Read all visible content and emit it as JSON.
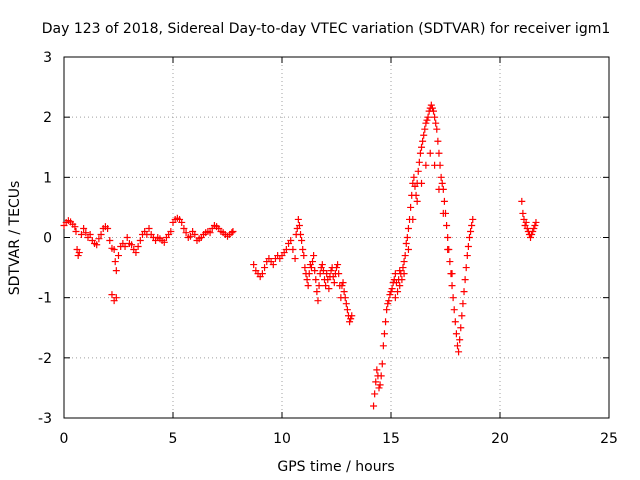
{
  "chart_data": {
    "type": "scatter",
    "title": "Day 123 of 2018, Sidereal Day-to-day VTEC variation (SDTVAR) for receiver igm1",
    "xlabel": "GPS time / hours",
    "ylabel": "SDTVAR / TECUs",
    "xlim": [
      0,
      25
    ],
    "ylim": [
      -3,
      3
    ],
    "x_ticks": [
      0,
      5,
      10,
      15,
      20,
      25
    ],
    "y_ticks": [
      -3,
      -2,
      -1,
      0,
      1,
      2,
      3
    ],
    "grid": true,
    "marker": "+",
    "color": "#ff0000",
    "series": [
      {
        "name": "SDTVAR",
        "points": [
          [
            0.0,
            0.2
          ],
          [
            0.1,
            0.25
          ],
          [
            0.2,
            0.28
          ],
          [
            0.3,
            0.26
          ],
          [
            0.4,
            0.22
          ],
          [
            0.5,
            0.18
          ],
          [
            0.55,
            0.1
          ],
          [
            0.6,
            -0.2
          ],
          [
            0.65,
            -0.3
          ],
          [
            0.7,
            -0.25
          ],
          [
            0.8,
            0.05
          ],
          [
            0.9,
            0.15
          ],
          [
            1.0,
            0.08
          ],
          [
            1.1,
            0.0
          ],
          [
            1.2,
            0.05
          ],
          [
            1.3,
            -0.05
          ],
          [
            1.4,
            -0.1
          ],
          [
            1.5,
            -0.12
          ],
          [
            1.6,
            -0.02
          ],
          [
            1.7,
            0.05
          ],
          [
            1.8,
            0.15
          ],
          [
            1.9,
            0.18
          ],
          [
            2.0,
            0.15
          ],
          [
            2.1,
            -0.05
          ],
          [
            2.2,
            -0.18
          ],
          [
            2.3,
            -0.2
          ],
          [
            2.35,
            -0.4
          ],
          [
            2.4,
            -0.55
          ],
          [
            2.2,
            -0.95
          ],
          [
            2.3,
            -1.05
          ],
          [
            2.4,
            -1.0
          ],
          [
            2.5,
            -0.3
          ],
          [
            2.6,
            -0.15
          ],
          [
            2.7,
            -0.1
          ],
          [
            2.8,
            -0.15
          ],
          [
            2.9,
            0.0
          ],
          [
            3.0,
            -0.1
          ],
          [
            3.1,
            -0.12
          ],
          [
            3.2,
            -0.2
          ],
          [
            3.3,
            -0.25
          ],
          [
            3.4,
            -0.15
          ],
          [
            3.5,
            -0.05
          ],
          [
            3.6,
            0.05
          ],
          [
            3.7,
            0.1
          ],
          [
            3.8,
            0.05
          ],
          [
            3.9,
            0.15
          ],
          [
            4.0,
            0.05
          ],
          [
            4.1,
            0.0
          ],
          [
            4.2,
            -0.05
          ],
          [
            4.3,
            0.0
          ],
          [
            4.4,
            -0.02
          ],
          [
            4.5,
            -0.05
          ],
          [
            4.6,
            -0.08
          ],
          [
            4.7,
            0.0
          ],
          [
            4.8,
            0.05
          ],
          [
            4.9,
            0.1
          ],
          [
            5.0,
            0.25
          ],
          [
            5.1,
            0.3
          ],
          [
            5.2,
            0.32
          ],
          [
            5.3,
            0.3
          ],
          [
            5.4,
            0.25
          ],
          [
            5.5,
            0.15
          ],
          [
            5.6,
            0.08
          ],
          [
            5.7,
            0.0
          ],
          [
            5.8,
            0.02
          ],
          [
            5.9,
            0.1
          ],
          [
            6.0,
            0.05
          ],
          [
            6.1,
            -0.05
          ],
          [
            6.2,
            -0.02
          ],
          [
            6.3,
            0.0
          ],
          [
            6.4,
            0.05
          ],
          [
            6.5,
            0.08
          ],
          [
            6.6,
            0.1
          ],
          [
            6.7,
            0.08
          ],
          [
            6.8,
            0.15
          ],
          [
            6.9,
            0.2
          ],
          [
            7.0,
            0.18
          ],
          [
            7.1,
            0.15
          ],
          [
            7.2,
            0.1
          ],
          [
            7.3,
            0.08
          ],
          [
            7.4,
            0.05
          ],
          [
            7.5,
            0.02
          ],
          [
            7.6,
            0.05
          ],
          [
            7.7,
            0.08
          ],
          [
            7.75,
            0.1
          ],
          [
            8.7,
            -0.45
          ],
          [
            8.8,
            -0.55
          ],
          [
            8.9,
            -0.6
          ],
          [
            9.0,
            -0.65
          ],
          [
            9.1,
            -0.6
          ],
          [
            9.2,
            -0.5
          ],
          [
            9.3,
            -0.4
          ],
          [
            9.4,
            -0.35
          ],
          [
            9.5,
            -0.4
          ],
          [
            9.6,
            -0.45
          ],
          [
            9.7,
            -0.35
          ],
          [
            9.8,
            -0.3
          ],
          [
            9.9,
            -0.35
          ],
          [
            10.0,
            -0.3
          ],
          [
            10.1,
            -0.25
          ],
          [
            10.2,
            -0.2
          ],
          [
            10.3,
            -0.1
          ],
          [
            10.4,
            -0.05
          ],
          [
            10.5,
            -0.2
          ],
          [
            10.6,
            -0.35
          ],
          [
            10.65,
            0.05
          ],
          [
            10.7,
            0.15
          ],
          [
            10.75,
            0.3
          ],
          [
            10.8,
            0.2
          ],
          [
            10.85,
            0.05
          ],
          [
            10.9,
            -0.05
          ],
          [
            10.95,
            -0.2
          ],
          [
            11.0,
            -0.3
          ],
          [
            11.05,
            -0.5
          ],
          [
            11.1,
            -0.6
          ],
          [
            11.15,
            -0.7
          ],
          [
            11.2,
            -0.8
          ],
          [
            11.25,
            -0.6
          ],
          [
            11.3,
            -0.45
          ],
          [
            11.35,
            -0.5
          ],
          [
            11.4,
            -0.4
          ],
          [
            11.45,
            -0.3
          ],
          [
            11.5,
            -0.55
          ],
          [
            11.55,
            -0.7
          ],
          [
            11.6,
            -0.9
          ],
          [
            11.65,
            -1.05
          ],
          [
            11.7,
            -0.8
          ],
          [
            11.75,
            -0.6
          ],
          [
            11.8,
            -0.5
          ],
          [
            11.85,
            -0.45
          ],
          [
            11.9,
            -0.55
          ],
          [
            11.95,
            -0.7
          ],
          [
            12.0,
            -0.8
          ],
          [
            12.05,
            -0.6
          ],
          [
            12.1,
            -0.7
          ],
          [
            12.15,
            -0.85
          ],
          [
            12.2,
            -0.65
          ],
          [
            12.25,
            -0.55
          ],
          [
            12.3,
            -0.5
          ],
          [
            12.35,
            -0.65
          ],
          [
            12.4,
            -0.75
          ],
          [
            12.45,
            -0.6
          ],
          [
            12.5,
            -0.5
          ],
          [
            12.55,
            -0.45
          ],
          [
            12.6,
            -0.6
          ],
          [
            12.65,
            -0.8
          ],
          [
            12.7,
            -1.0
          ],
          [
            12.75,
            -0.8
          ],
          [
            12.8,
            -0.75
          ],
          [
            12.85,
            -0.9
          ],
          [
            12.9,
            -1.0
          ],
          [
            12.95,
            -1.1
          ],
          [
            13.0,
            -1.2
          ],
          [
            13.05,
            -1.3
          ],
          [
            13.1,
            -1.4
          ],
          [
            13.15,
            -1.35
          ],
          [
            13.2,
            -1.3
          ],
          [
            14.2,
            -2.8
          ],
          [
            14.25,
            -2.6
          ],
          [
            14.3,
            -2.4
          ],
          [
            14.35,
            -2.2
          ],
          [
            14.4,
            -2.3
          ],
          [
            14.45,
            -2.5
          ],
          [
            14.5,
            -2.45
          ],
          [
            14.55,
            -2.3
          ],
          [
            14.6,
            -2.1
          ],
          [
            14.65,
            -1.8
          ],
          [
            14.7,
            -1.6
          ],
          [
            14.75,
            -1.4
          ],
          [
            14.8,
            -1.2
          ],
          [
            14.85,
            -1.1
          ],
          [
            14.9,
            -1.05
          ],
          [
            14.95,
            -0.95
          ],
          [
            15.0,
            -0.9
          ],
          [
            15.05,
            -0.85
          ],
          [
            15.1,
            -0.75
          ],
          [
            15.15,
            -0.7
          ],
          [
            15.2,
            -0.6
          ],
          [
            15.25,
            -0.75
          ],
          [
            15.3,
            -0.9
          ],
          [
            15.35,
            -0.7
          ],
          [
            15.4,
            -0.55
          ],
          [
            15.45,
            -0.6
          ],
          [
            15.5,
            -0.7
          ],
          [
            15.55,
            -0.5
          ],
          [
            15.6,
            -0.4
          ],
          [
            15.65,
            -0.3
          ],
          [
            15.7,
            -0.1
          ],
          [
            15.75,
            0.0
          ],
          [
            15.8,
            0.15
          ],
          [
            15.85,
            0.3
          ],
          [
            15.9,
            0.5
          ],
          [
            15.95,
            0.7
          ],
          [
            16.0,
            0.9
          ],
          [
            16.05,
            1.0
          ],
          [
            16.1,
            0.85
          ],
          [
            16.15,
            0.7
          ],
          [
            16.2,
            0.9
          ],
          [
            16.25,
            1.1
          ],
          [
            16.3,
            1.25
          ],
          [
            16.35,
            1.4
          ],
          [
            16.4,
            1.5
          ],
          [
            16.45,
            1.6
          ],
          [
            16.5,
            1.7
          ],
          [
            16.55,
            1.8
          ],
          [
            16.6,
            1.9
          ],
          [
            16.65,
            1.95
          ],
          [
            16.7,
            2.0
          ],
          [
            16.75,
            2.1
          ],
          [
            16.8,
            2.15
          ],
          [
            16.85,
            2.2
          ],
          [
            16.9,
            2.15
          ],
          [
            16.95,
            2.1
          ],
          [
            17.0,
            2.0
          ],
          [
            17.05,
            1.9
          ],
          [
            17.1,
            1.8
          ],
          [
            17.15,
            1.6
          ],
          [
            17.2,
            1.4
          ],
          [
            17.25,
            1.2
          ],
          [
            17.3,
            1.0
          ],
          [
            17.35,
            0.9
          ],
          [
            17.4,
            0.8
          ],
          [
            17.45,
            0.6
          ],
          [
            17.5,
            0.4
          ],
          [
            17.55,
            0.2
          ],
          [
            17.6,
            0.0
          ],
          [
            17.65,
            -0.2
          ],
          [
            17.7,
            -0.4
          ],
          [
            17.75,
            -0.6
          ],
          [
            17.8,
            -0.8
          ],
          [
            17.85,
            -1.0
          ],
          [
            17.9,
            -1.2
          ],
          [
            17.95,
            -1.4
          ],
          [
            18.0,
            -1.6
          ],
          [
            18.05,
            -1.8
          ],
          [
            18.1,
            -1.9
          ],
          [
            18.15,
            -1.7
          ],
          [
            18.2,
            -1.5
          ],
          [
            18.25,
            -1.3
          ],
          [
            18.3,
            -1.1
          ],
          [
            18.35,
            -0.9
          ],
          [
            18.4,
            -0.7
          ],
          [
            18.45,
            -0.5
          ],
          [
            18.5,
            -0.3
          ],
          [
            18.55,
            -0.15
          ],
          [
            18.6,
            0.0
          ],
          [
            18.65,
            0.1
          ],
          [
            18.7,
            0.2
          ],
          [
            18.75,
            0.3
          ],
          [
            15.2,
            -1.0
          ],
          [
            15.4,
            -0.8
          ],
          [
            15.6,
            -0.6
          ],
          [
            15.8,
            -0.2
          ],
          [
            16.0,
            0.3
          ],
          [
            16.2,
            0.6
          ],
          [
            16.4,
            0.9
          ],
          [
            16.6,
            1.2
          ],
          [
            16.8,
            1.4
          ],
          [
            17.0,
            1.2
          ],
          [
            17.2,
            0.8
          ],
          [
            17.4,
            0.4
          ],
          [
            17.6,
            -0.2
          ],
          [
            17.8,
            -0.6
          ],
          [
            21.0,
            0.6
          ],
          [
            21.05,
            0.4
          ],
          [
            21.1,
            0.3
          ],
          [
            21.15,
            0.2
          ],
          [
            21.2,
            0.25
          ],
          [
            21.25,
            0.15
          ],
          [
            21.3,
            0.1
          ],
          [
            21.35,
            0.05
          ],
          [
            21.4,
            0.0
          ],
          [
            21.45,
            0.05
          ],
          [
            21.5,
            0.1
          ],
          [
            21.55,
            0.15
          ],
          [
            21.6,
            0.2
          ],
          [
            21.65,
            0.25
          ]
        ]
      }
    ]
  }
}
